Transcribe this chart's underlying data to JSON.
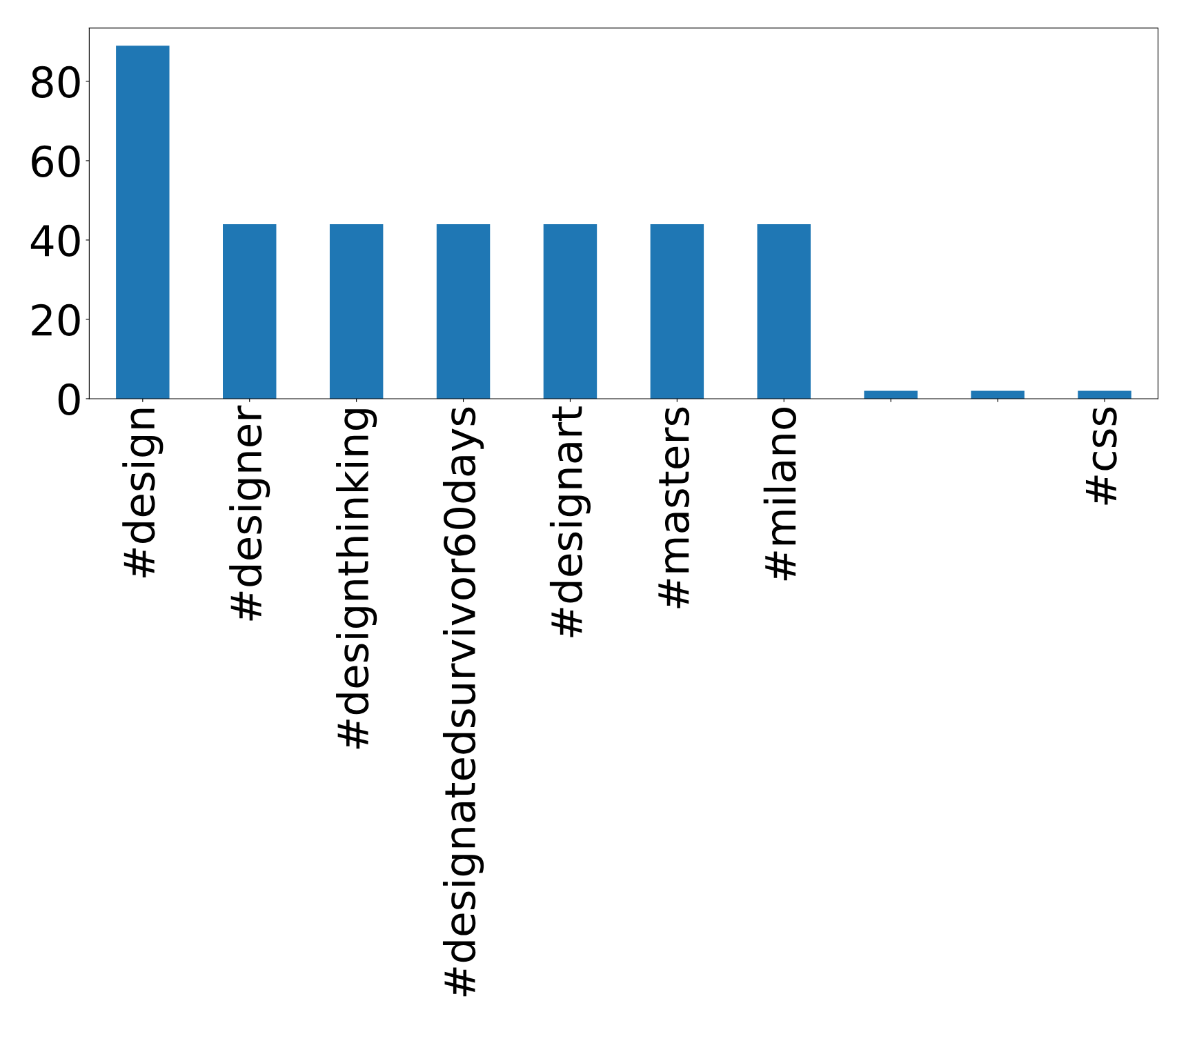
{
  "chart_data": {
    "type": "bar",
    "categories": [
      "#design",
      "#designer",
      "#designthinking",
      "#designatedsurvivor60days",
      "#designart",
      "#masters",
      "#milano",
      null,
      null,
      "#css"
    ],
    "values": [
      89,
      44,
      44,
      44,
      44,
      44,
      44,
      2,
      2,
      2
    ],
    "color": "#1f77b4",
    "ylim": [
      0,
      93.45
    ],
    "yticks": [
      0,
      20,
      40,
      60,
      80
    ],
    "grid": false,
    "legend": false
  }
}
